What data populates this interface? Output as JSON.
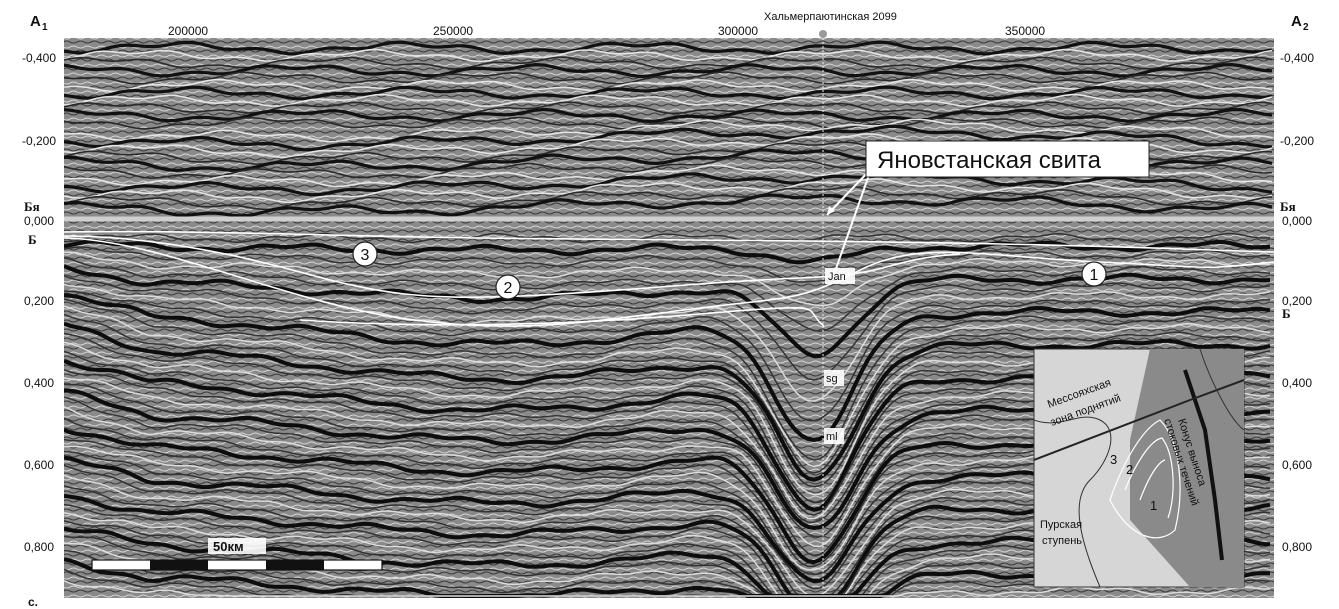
{
  "corners": {
    "left_title": "A",
    "left_sub": "1",
    "right_title": "A",
    "right_sub": "2",
    "bottom_left": "с."
  },
  "x_axis": {
    "ticks": [
      "200000",
      "250000",
      "300000",
      "350000"
    ]
  },
  "y_axis": {
    "left_ticks": [
      "-0,400",
      "-0,200",
      "0,000",
      "0,200",
      "0,400",
      "0,600",
      "0,800"
    ],
    "right_ticks": [
      "-0,400",
      "-0,200",
      "0,000",
      "0,200",
      "0,400",
      "0,600",
      "0,800"
    ]
  },
  "well": {
    "name": "Хальмерпаютинская 2099",
    "color": "#9a9a9a"
  },
  "horizons": {
    "by_left": "Бя",
    "by_right": "Бя",
    "b_left": "Б",
    "b_right": "Б"
  },
  "callout": {
    "text": "Яновстанская свита"
  },
  "markers": {
    "jan": "Jan",
    "sg": "sg",
    "ml": "ml"
  },
  "units": [
    "3",
    "2",
    "1"
  ],
  "scale_bar": {
    "label": "50км"
  },
  "inset": {
    "zone_label_1": "Мессояхская",
    "zone_label_2": "зона поднятий",
    "step_label_1": "Пурская",
    "step_label_2": "ступень",
    "fan_label_1": "Конус выноса",
    "fan_label_2": "стоковых течений",
    "units": [
      "3",
      "2",
      "1"
    ]
  },
  "colors": {
    "seismic_bg": "#8c8c8c",
    "reflector": "#111111",
    "white_line": "#ffffff",
    "inset_fan": "#777777",
    "inset_bg": "#d6d6d6"
  }
}
